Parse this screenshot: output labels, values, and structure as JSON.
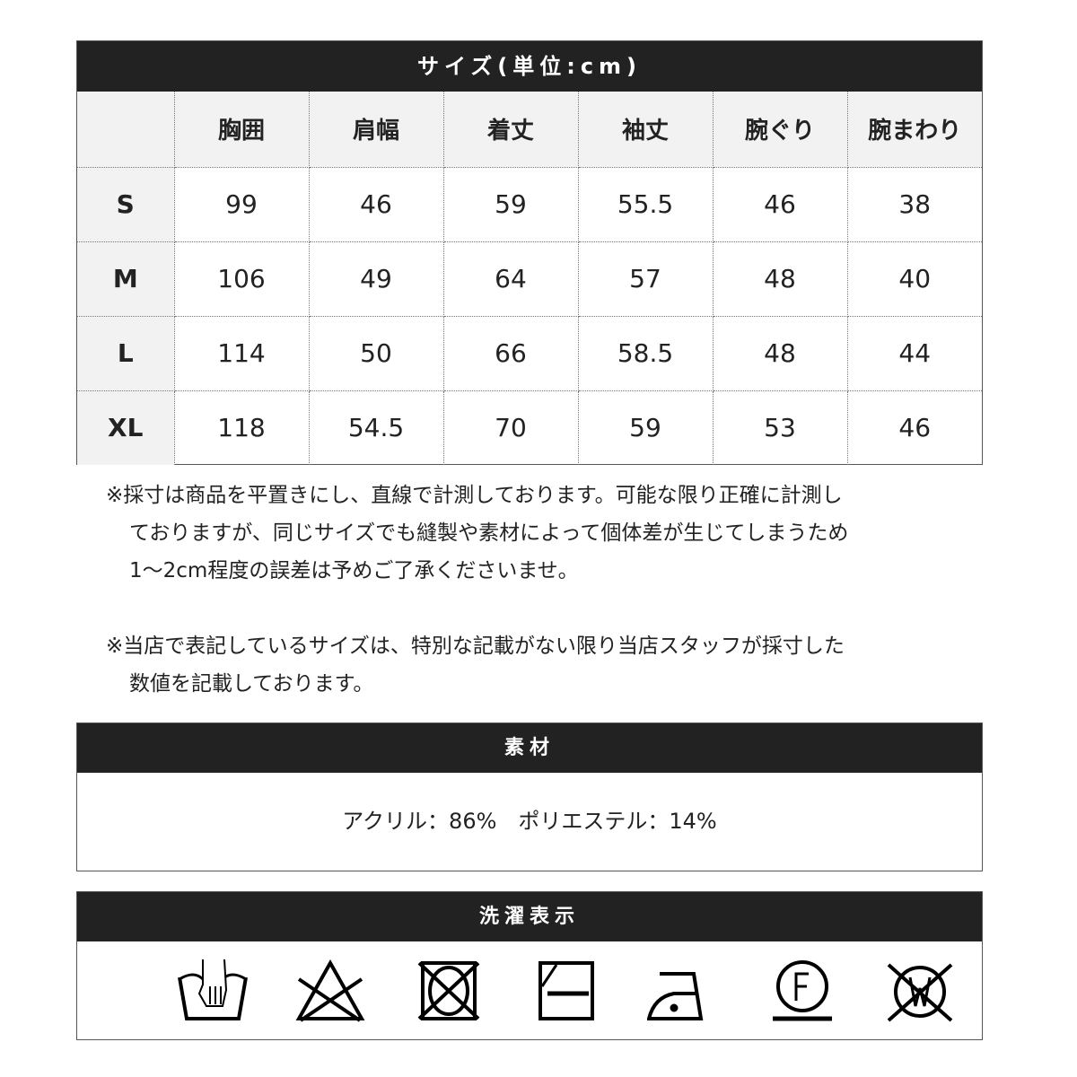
{
  "size": {
    "title": "サイズ(単位:cm)",
    "headers": [
      "",
      "胸囲",
      "肩幅",
      "着丈",
      "袖丈",
      "腕ぐり",
      "腕まわり"
    ],
    "rows": [
      [
        "S",
        "99",
        "46",
        "59",
        "55.5",
        "46",
        "38"
      ],
      [
        "M",
        "106",
        "49",
        "64",
        "57",
        "48",
        "40"
      ],
      [
        "L",
        "114",
        "50",
        "66",
        "58.5",
        "48",
        "44"
      ],
      [
        "XL",
        "118",
        "54.5",
        "70",
        "59",
        "53",
        "46"
      ]
    ]
  },
  "notes": [
    [
      "※採寸は商品を平置きにし、直線で計測しております。可能な限り正確に計測し",
      "ておりますが、同じサイズでも縫製や素材によって個体差が生じてしまうため",
      "1～2cm程度の誤差は予めご了承くださいませ。"
    ],
    [
      "※当店で表記しているサイズは、特別な記載がない限り当店スタッフが採寸した",
      "数値を記載しております。"
    ]
  ],
  "material": {
    "title": "素材",
    "text": "アクリル：86%　ポリエステル：14%"
  },
  "care": {
    "title": "洗濯表示",
    "icons": [
      "hand-wash-icon",
      "no-bleach-icon",
      "no-tumble-dry-icon",
      "flat-dry-shade-icon",
      "iron-low-icon",
      "dry-clean-f-icon",
      "no-wet-clean-icon"
    ]
  }
}
